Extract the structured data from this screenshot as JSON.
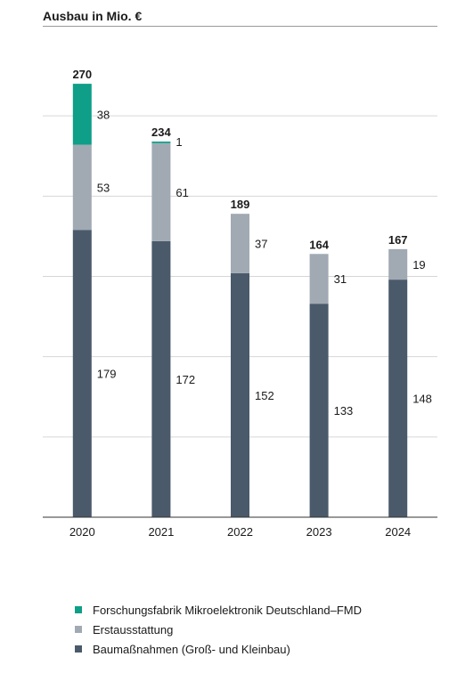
{
  "title": "Ausbau in Mio. €",
  "chart_data": {
    "type": "bar",
    "stacked": true,
    "categories": [
      "2020",
      "2021",
      "2022",
      "2023",
      "2024"
    ],
    "series": [
      {
        "name": "Baumaßnahmen (Groß- und Kleinbau)",
        "color": "#4a5a6b",
        "values": [
          179,
          172,
          152,
          133,
          148
        ]
      },
      {
        "name": "Erstausstattung",
        "color": "#a1aab3",
        "values": [
          53,
          61,
          37,
          31,
          19
        ]
      },
      {
        "name": "Forschungsfabrik Mikroelektronik Deutschland–FMD",
        "color": "#0f9e88",
        "values": [
          38,
          1,
          null,
          null,
          null
        ]
      }
    ],
    "totals": [
      270,
      234,
      189,
      164,
      167
    ],
    "ylim": [
      0,
      300
    ],
    "grid": true,
    "legend_position": "bottom"
  },
  "legend": [
    {
      "label": "Forschungsfabrik Mikroelektronik Deutschland–FMD",
      "color": "#0f9e88"
    },
    {
      "label": "Erstausstattung",
      "color": "#a1aab3"
    },
    {
      "label": "Baumaßnahmen (Groß- und Kleinbau)",
      "color": "#4a5a6b"
    }
  ]
}
